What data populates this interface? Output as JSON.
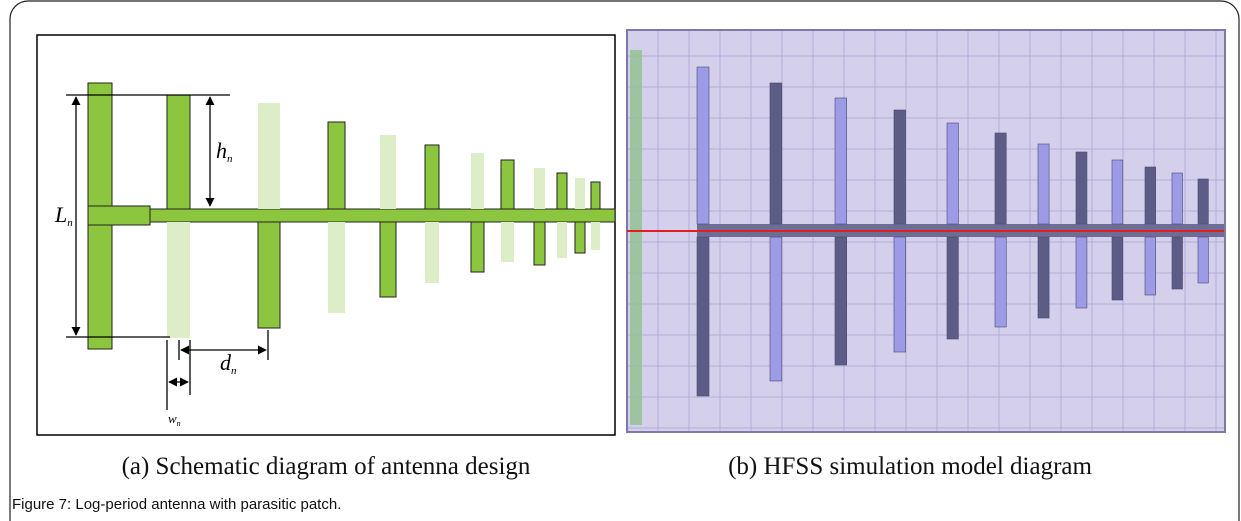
{
  "figure": {
    "panel_a": {
      "labels": {
        "length": {
          "main": "L",
          "sub": "n"
        },
        "height": {
          "main": "h",
          "sub": "n"
        },
        "spacing": {
          "main": "d",
          "sub": "n"
        },
        "width": {
          "main": "w",
          "sub": "n"
        }
      },
      "caption": "(a) Schematic diagram of antenna design"
    },
    "panel_b": {
      "caption": "(b) HFSS simulation model diagram"
    },
    "caption": "Figure 7: Log-period antenna with parasitic patch."
  }
}
